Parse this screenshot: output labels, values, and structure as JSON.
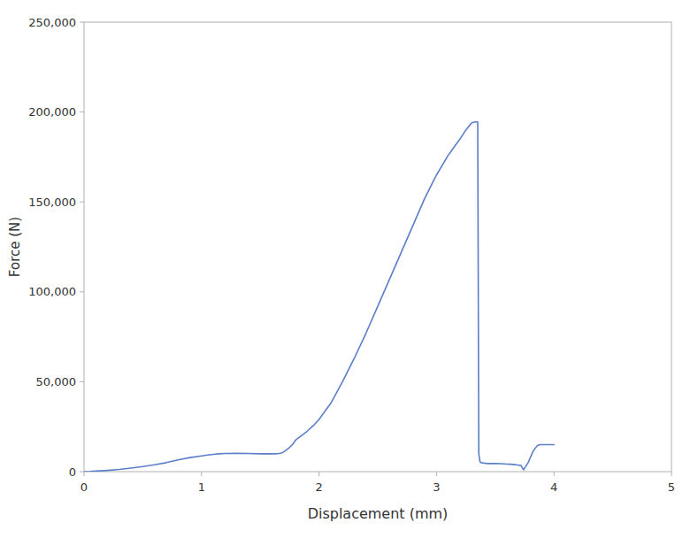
{
  "chart_data": {
    "type": "line",
    "xlabel": "Displacement (mm)",
    "ylabel": "Force (N)",
    "color": "#5B7EC9",
    "grid": false,
    "xlim": [
      0.0,
      5.0
    ],
    "ylim": [
      0,
      250000
    ],
    "xticks": [
      0,
      1,
      2,
      3,
      4,
      5
    ],
    "yticks": [
      0,
      {
        "value": 50000,
        "label": "50,000"
      },
      {
        "value": 100000,
        "label": "100,000"
      },
      {
        "value": 150000,
        "label": "150,000"
      },
      {
        "value": 200000,
        "label": "200,000"
      },
      {
        "value": 250000,
        "label": "250,000"
      }
    ],
    "x": [
      0.0,
      0.05,
      0.1,
      0.2,
      0.3,
      0.4,
      0.5,
      0.6,
      0.7,
      0.8,
      0.9,
      1.0,
      1.05,
      1.1,
      1.15,
      1.2,
      1.3,
      1.4,
      1.5,
      1.6,
      1.65,
      1.68,
      1.7,
      1.72,
      1.75,
      1.78,
      1.8,
      1.85,
      1.9,
      1.95,
      2.0,
      2.1,
      2.2,
      2.3,
      2.4,
      2.5,
      2.6,
      2.7,
      2.8,
      2.9,
      3.0,
      3.1,
      3.2,
      3.25,
      3.3,
      3.33,
      3.35,
      3.351,
      3.36,
      3.37,
      3.38,
      3.4,
      3.42,
      3.44,
      3.5,
      3.55,
      3.6,
      3.63,
      3.65,
      3.67,
      3.68,
      3.7,
      3.72,
      3.74,
      3.76,
      3.78,
      3.8,
      3.82,
      3.84,
      3.86,
      3.88,
      3.9,
      4.0
    ],
    "values": [
      0,
      100,
      300,
      700,
      1200,
      2000,
      2800,
      3800,
      5000,
      6500,
      7800,
      8700,
      9200,
      9600,
      9900,
      10100,
      10200,
      10100,
      9900,
      9900,
      10000,
      10300,
      11000,
      12000,
      13500,
      15500,
      17500,
      20000,
      22500,
      25500,
      29000,
      38000,
      50000,
      63000,
      77000,
      92000,
      107000,
      122000,
      137000,
      152000,
      165000,
      176000,
      185000,
      190000,
      194000,
      194500,
      194500,
      194000,
      10000,
      5500,
      5000,
      4800,
      4600,
      4500,
      4500,
      4400,
      4200,
      4100,
      4000,
      3900,
      3800,
      3600,
      3400,
      1000,
      3000,
      5000,
      8000,
      11000,
      13000,
      14500,
      15000,
      15000,
      15000
    ]
  }
}
